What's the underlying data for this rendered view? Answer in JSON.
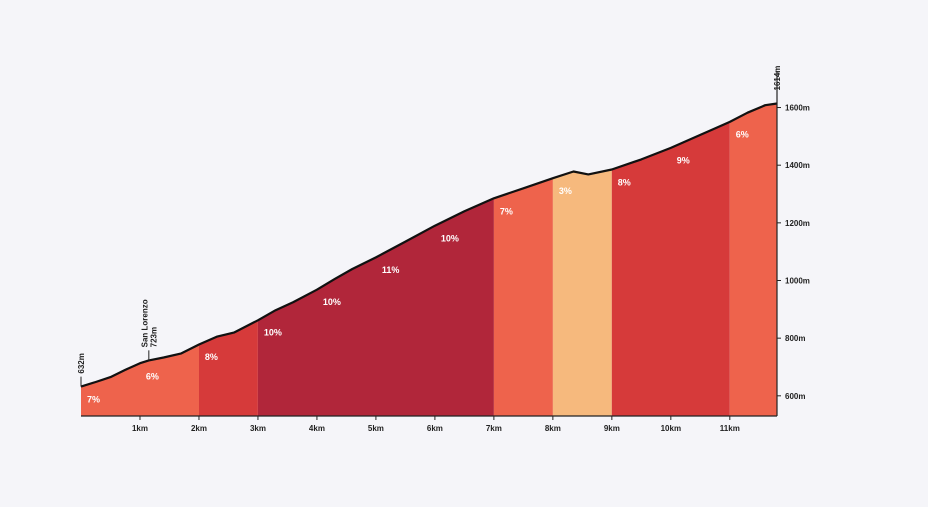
{
  "chart_data": {
    "type": "area",
    "title": "",
    "xlabel": "",
    "ylabel": "",
    "x_unit": "km",
    "y_unit": "m",
    "xlim": [
      0,
      11.8
    ],
    "ylim": [
      530,
      1640
    ],
    "x_ticks": [
      1,
      2,
      3,
      4,
      5,
      6,
      7,
      8,
      9,
      10,
      11
    ],
    "x_tick_labels": [
      "1km",
      "2km",
      "3km",
      "4km",
      "5km",
      "6km",
      "7km",
      "8km",
      "9km",
      "10km",
      "11km"
    ],
    "y_ticks": [
      600,
      800,
      1000,
      1200,
      1400,
      1600
    ],
    "y_tick_labels": [
      "600m",
      "800m",
      "1000m",
      "1200m",
      "1400m",
      "1600m"
    ],
    "grid": false,
    "segments": [
      {
        "start": 0,
        "end": 2,
        "grade": "7%",
        "color": "#ee634c",
        "label_x": 0.05
      },
      {
        "start": 0,
        "end": 2,
        "grade": "6%",
        "color": "#ee634c",
        "label_x": 1.05
      },
      {
        "start": 2,
        "end": 3,
        "grade": "8%",
        "color": "#d63a3a",
        "label_x": 2.05
      },
      {
        "start": 3,
        "end": 7,
        "grade": "10%",
        "color": "#b1263a",
        "label_x": 3.05
      },
      {
        "start": 3,
        "end": 7,
        "grade": "10%",
        "color": "#b1263a",
        "label_x": 4.05
      },
      {
        "start": 3,
        "end": 7,
        "grade": "11%",
        "color": "#b1263a",
        "label_x": 5.05
      },
      {
        "start": 3,
        "end": 7,
        "grade": "10%",
        "color": "#b1263a",
        "label_x": 6.05
      },
      {
        "start": 7,
        "end": 8,
        "grade": "7%",
        "color": "#ee634c",
        "label_x": 7.05
      },
      {
        "start": 8,
        "end": 9,
        "grade": "3%",
        "color": "#f6b97d",
        "label_x": 8.05
      },
      {
        "start": 9,
        "end": 11,
        "grade": "8%",
        "color": "#d63a3a",
        "label_x": 9.05
      },
      {
        "start": 9,
        "end": 11,
        "grade": "9%",
        "color": "#d63a3a",
        "label_x": 10.05
      },
      {
        "start": 11,
        "end": 11.8,
        "grade": "6%",
        "color": "#ee634c",
        "label_x": 11.05
      }
    ],
    "profile": [
      [
        0,
        632
      ],
      [
        0.25,
        648
      ],
      [
        0.5,
        665
      ],
      [
        0.75,
        690
      ],
      [
        1.0,
        713
      ],
      [
        1.15,
        723
      ],
      [
        1.4,
        733
      ],
      [
        1.7,
        747
      ],
      [
        2.0,
        778
      ],
      [
        2.3,
        805
      ],
      [
        2.6,
        820
      ],
      [
        3.0,
        862
      ],
      [
        3.3,
        897
      ],
      [
        3.6,
        925
      ],
      [
        4.0,
        968
      ],
      [
        4.3,
        1005
      ],
      [
        4.6,
        1040
      ],
      [
        5.0,
        1080
      ],
      [
        5.5,
        1135
      ],
      [
        6.0,
        1190
      ],
      [
        6.5,
        1240
      ],
      [
        7.0,
        1285
      ],
      [
        7.5,
        1320
      ],
      [
        8.0,
        1355
      ],
      [
        8.35,
        1378
      ],
      [
        8.6,
        1368
      ],
      [
        9.0,
        1385
      ],
      [
        9.5,
        1420
      ],
      [
        10.0,
        1460
      ],
      [
        10.5,
        1505
      ],
      [
        11.0,
        1550
      ],
      [
        11.3,
        1582
      ],
      [
        11.6,
        1608
      ],
      [
        11.8,
        1614
      ]
    ],
    "annotations": [
      {
        "x": 0,
        "y": 632,
        "lines": [
          "632m"
        ]
      },
      {
        "x": 1.15,
        "y": 723,
        "lines": [
          "San Lorenzo",
          "723m"
        ]
      },
      {
        "x": 11.8,
        "y": 1614,
        "lines": [
          "1614m"
        ]
      }
    ]
  }
}
